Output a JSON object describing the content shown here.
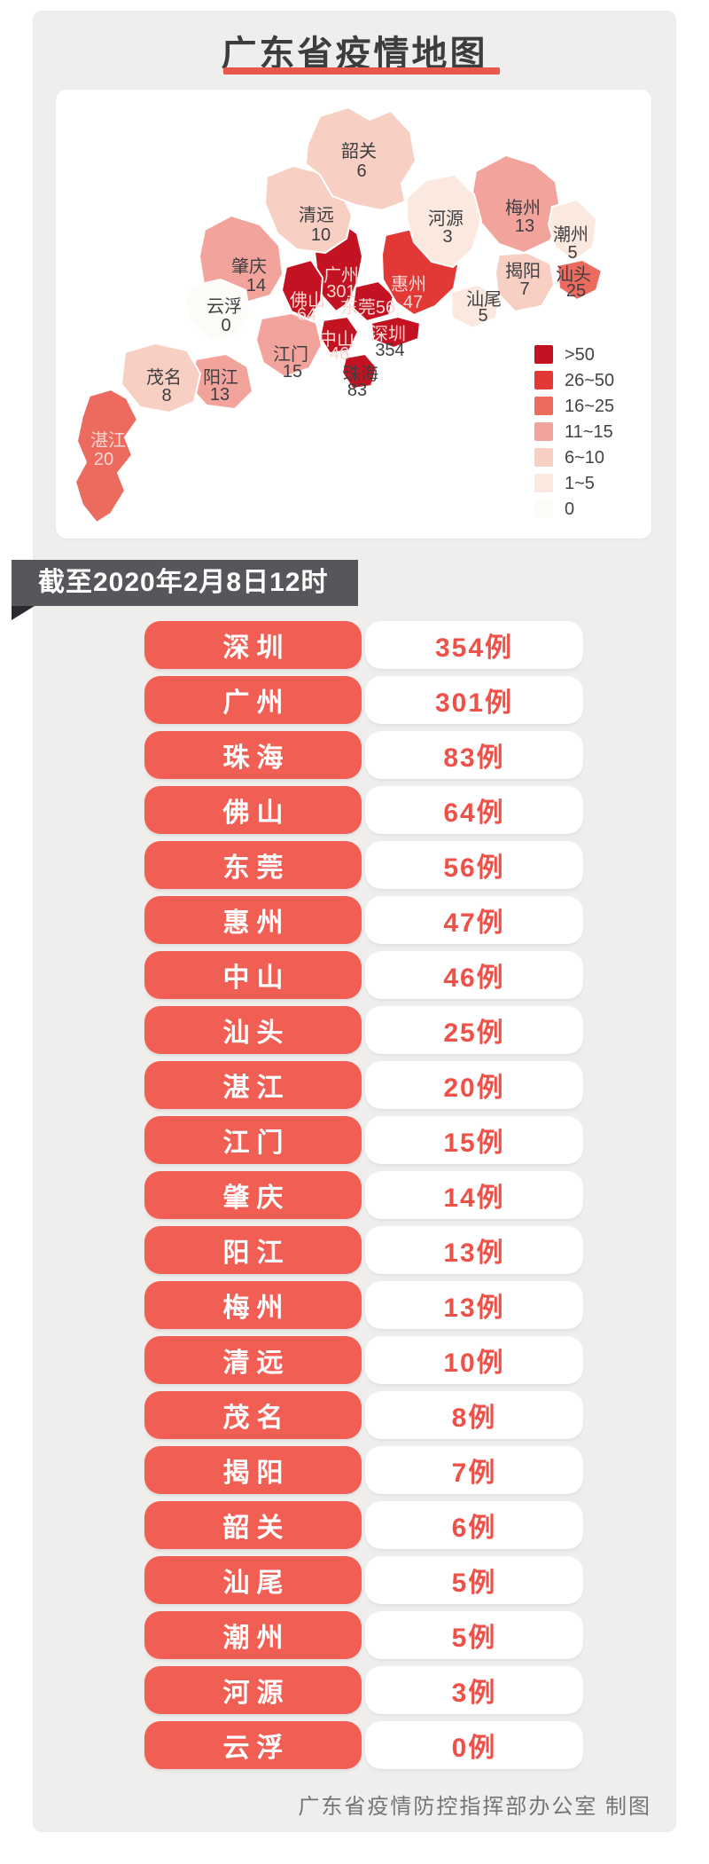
{
  "page": {
    "title": "广东省疫情地图",
    "banner": "截至2020年2月8日12时",
    "footer": "广东省疫情防控指挥部办公室  制图"
  },
  "colors": {
    "accent_red": "#e9584e",
    "pill_red": "#f05e54",
    "count_red": "#ee5148",
    "banner_bg": "#57565a",
    "panel_bg": "#f0eeec",
    "label_dark": "#3e3e41",
    "label_light": "#fad7d2"
  },
  "legend": [
    {
      "label": ">50",
      "color": "#c31221"
    },
    {
      "label": "26~50",
      "color": "#e23936"
    },
    {
      "label": "16~25",
      "color": "#ec6a5e"
    },
    {
      "label": "11~15",
      "color": "#f2a49c"
    },
    {
      "label": "6~10",
      "color": "#f7cfc3"
    },
    {
      "label": "1~5",
      "color": "#fbe9e0"
    },
    {
      "label": "0",
      "color": "#fdfbf7"
    }
  ],
  "chart_data": {
    "type": "heatmap",
    "subtype": "choropleth-map",
    "title": "广东省疫情地图",
    "as_of": "截至2020年2月8日12时",
    "unit": "例",
    "legend_position": "right-bottom-of-map",
    "legend_buckets": [
      ">50",
      "26~50",
      "16~25",
      "11~15",
      "6~10",
      "1~5",
      "0"
    ],
    "regions": [
      {
        "id": "shenzhen",
        "name": "深圳",
        "value": 354,
        "bucket": ">50"
      },
      {
        "id": "guangzhou",
        "name": "广州",
        "value": 301,
        "bucket": ">50"
      },
      {
        "id": "zhuhai",
        "name": "珠海",
        "value": 83,
        "bucket": ">50"
      },
      {
        "id": "foshan",
        "name": "佛山",
        "value": 64,
        "bucket": ">50"
      },
      {
        "id": "dongguan",
        "name": "东莞",
        "value": 56,
        "bucket": ">50"
      },
      {
        "id": "huizhou",
        "name": "惠州",
        "value": 47,
        "bucket": "26~50"
      },
      {
        "id": "zhongshan",
        "name": "中山",
        "value": 46,
        "bucket": "26~50"
      },
      {
        "id": "shantou",
        "name": "汕头",
        "value": 25,
        "bucket": "16~25"
      },
      {
        "id": "zhanjiang",
        "name": "湛江",
        "value": 20,
        "bucket": "16~25"
      },
      {
        "id": "jiangmen",
        "name": "江门",
        "value": 15,
        "bucket": "11~15"
      },
      {
        "id": "zhaoqing",
        "name": "肇庆",
        "value": 14,
        "bucket": "11~15"
      },
      {
        "id": "yangjiang",
        "name": "阳江",
        "value": 13,
        "bucket": "11~15"
      },
      {
        "id": "meizhou",
        "name": "梅州",
        "value": 13,
        "bucket": "11~15"
      },
      {
        "id": "qingyuan",
        "name": "清远",
        "value": 10,
        "bucket": "6~10"
      },
      {
        "id": "maoming",
        "name": "茂名",
        "value": 8,
        "bucket": "6~10"
      },
      {
        "id": "jieyang",
        "name": "揭阳",
        "value": 7,
        "bucket": "6~10"
      },
      {
        "id": "shaoguan",
        "name": "韶关",
        "value": 6,
        "bucket": "6~10"
      },
      {
        "id": "shanwei",
        "name": "汕尾",
        "value": 5,
        "bucket": "1~5"
      },
      {
        "id": "chaozhou",
        "name": "潮州",
        "value": 5,
        "bucket": "1~5"
      },
      {
        "id": "heyuan",
        "name": "河源",
        "value": 3,
        "bucket": "1~5"
      },
      {
        "id": "yunfu",
        "name": "云浮",
        "value": 0,
        "bucket": "0"
      }
    ]
  },
  "table": {
    "rows": [
      {
        "city": "深圳",
        "cases": 354,
        "cases_label": "354例"
      },
      {
        "city": "广州",
        "cases": 301,
        "cases_label": "301例"
      },
      {
        "city": "珠海",
        "cases": 83,
        "cases_label": "83例"
      },
      {
        "city": "佛山",
        "cases": 64,
        "cases_label": "64例"
      },
      {
        "city": "东莞",
        "cases": 56,
        "cases_label": "56例"
      },
      {
        "city": "惠州",
        "cases": 47,
        "cases_label": "47例"
      },
      {
        "city": "中山",
        "cases": 46,
        "cases_label": "46例"
      },
      {
        "city": "汕头",
        "cases": 25,
        "cases_label": "25例"
      },
      {
        "city": "湛江",
        "cases": 20,
        "cases_label": "20例"
      },
      {
        "city": "江门",
        "cases": 15,
        "cases_label": "15例"
      },
      {
        "city": "肇庆",
        "cases": 14,
        "cases_label": "14例"
      },
      {
        "city": "阳江",
        "cases": 13,
        "cases_label": "13例"
      },
      {
        "city": "梅州",
        "cases": 13,
        "cases_label": "13例"
      },
      {
        "city": "清远",
        "cases": 10,
        "cases_label": "10例"
      },
      {
        "city": "茂名",
        "cases": 8,
        "cases_label": "8例"
      },
      {
        "city": "揭阳",
        "cases": 7,
        "cases_label": "7例"
      },
      {
        "city": "韶关",
        "cases": 6,
        "cases_label": "6例"
      },
      {
        "city": "汕尾",
        "cases": 5,
        "cases_label": "5例"
      },
      {
        "city": "潮州",
        "cases": 5,
        "cases_label": "5例"
      },
      {
        "city": "河源",
        "cases": 3,
        "cases_label": "3例"
      },
      {
        "city": "云浮",
        "cases": 0,
        "cases_label": "0例"
      }
    ]
  }
}
